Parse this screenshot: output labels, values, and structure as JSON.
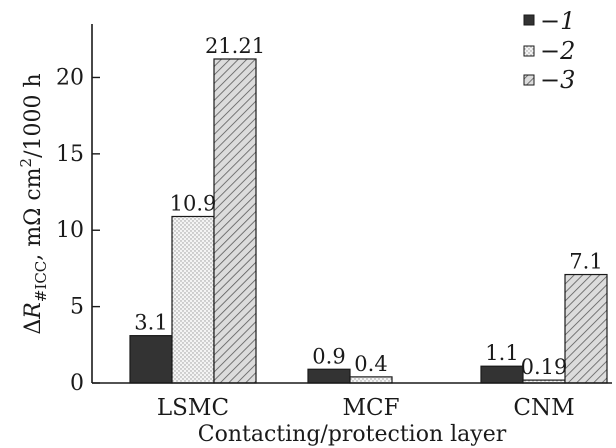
{
  "chart_data": {
    "type": "bar",
    "categories": [
      "LSMC",
      "MCF",
      "CNM"
    ],
    "series": [
      {
        "name": "1",
        "values": [
          3.1,
          0.9,
          1.1
        ],
        "labels": [
          "3.1",
          "0.9",
          "1.1"
        ],
        "fill": "solid",
        "color": "#333333"
      },
      {
        "name": "2",
        "values": [
          10.9,
          0.4,
          0.19
        ],
        "labels": [
          "10.9",
          "0.4",
          "0.19"
        ],
        "fill": "dotted",
        "color": "#ececec"
      },
      {
        "name": "3",
        "values": [
          21.21,
          null,
          7.1
        ],
        "labels": [
          "21.21",
          "",
          "7.1"
        ],
        "fill": "hatched",
        "color": "#d2d2d2"
      }
    ],
    "xlabel": "Contacting/protection layer",
    "ylabel": "ΔR#ICC, mΩ cm2/1000 h",
    "ylabel_parts": {
      "delta": "Δ",
      "symbol": "R",
      "subscript": "#ICC",
      "units": ", mΩ cm",
      "superscript": "2",
      "tail": "/1000 h"
    },
    "ylim": [
      0,
      23.5
    ],
    "yticks": [
      0,
      5,
      10,
      15,
      20
    ],
    "legend": {
      "position": "top-right",
      "dash": "−"
    },
    "grid": false
  }
}
